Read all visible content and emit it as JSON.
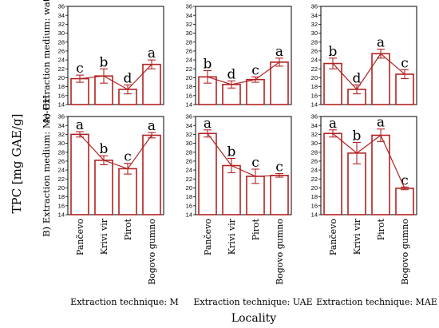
{
  "chart_data": {
    "type": "bar",
    "title": "",
    "ylabel": "TPC [mg GAE/g]",
    "xlabel": "Locality",
    "ylim": [
      14,
      36
    ],
    "yticks": [
      14,
      16,
      18,
      20,
      22,
      24,
      26,
      28,
      30,
      32,
      34,
      36
    ],
    "categories": [
      "Pančevo",
      "Krivi vir",
      "Pirot",
      "Bogovo gumno"
    ],
    "row_labels": [
      "A) Extraction medium: water",
      "B) Extraction medium: Me-OH"
    ],
    "column_labels": [
      "Extraction technique: M",
      "Extraction technique: UAE",
      "Extraction technique: MAE"
    ],
    "colors": {
      "bar": "#b22222",
      "line": "#b22222",
      "axis": "#000000"
    },
    "panels": [
      {
        "row": 0,
        "col": 0,
        "values": [
          19.8,
          20.4,
          17.4,
          23.0
        ],
        "errors": [
          0.8,
          1.6,
          1.0,
          1.0
        ],
        "letters": [
          "c",
          "b",
          "d",
          "a"
        ]
      },
      {
        "row": 0,
        "col": 1,
        "values": [
          20.2,
          18.5,
          19.6,
          23.5
        ],
        "errors": [
          1.4,
          0.8,
          0.6,
          0.9
        ],
        "letters": [
          "b",
          "d",
          "c",
          "a"
        ]
      },
      {
        "row": 0,
        "col": 2,
        "values": [
          23.2,
          17.4,
          25.4,
          20.8
        ],
        "errors": [
          1.2,
          1.0,
          1.0,
          1.0
        ],
        "letters": [
          "b",
          "d",
          "a",
          "c"
        ]
      },
      {
        "row": 1,
        "col": 0,
        "values": [
          32.0,
          26.2,
          24.3,
          31.8
        ],
        "errors": [
          0.6,
          1.0,
          1.2,
          0.6
        ],
        "letters": [
          "a",
          "b",
          "c",
          "a"
        ]
      },
      {
        "row": 1,
        "col": 1,
        "values": [
          32.2,
          25.0,
          22.6,
          22.8
        ],
        "errors": [
          0.8,
          1.6,
          1.6,
          0.4
        ],
        "letters": [
          "a",
          "b",
          "c",
          "c"
        ]
      },
      {
        "row": 1,
        "col": 2,
        "values": [
          32.2,
          27.8,
          31.8,
          19.9
        ],
        "errors": [
          0.8,
          2.4,
          1.4,
          0.3
        ],
        "letters": [
          "a",
          "b",
          "a",
          "c"
        ]
      }
    ]
  }
}
